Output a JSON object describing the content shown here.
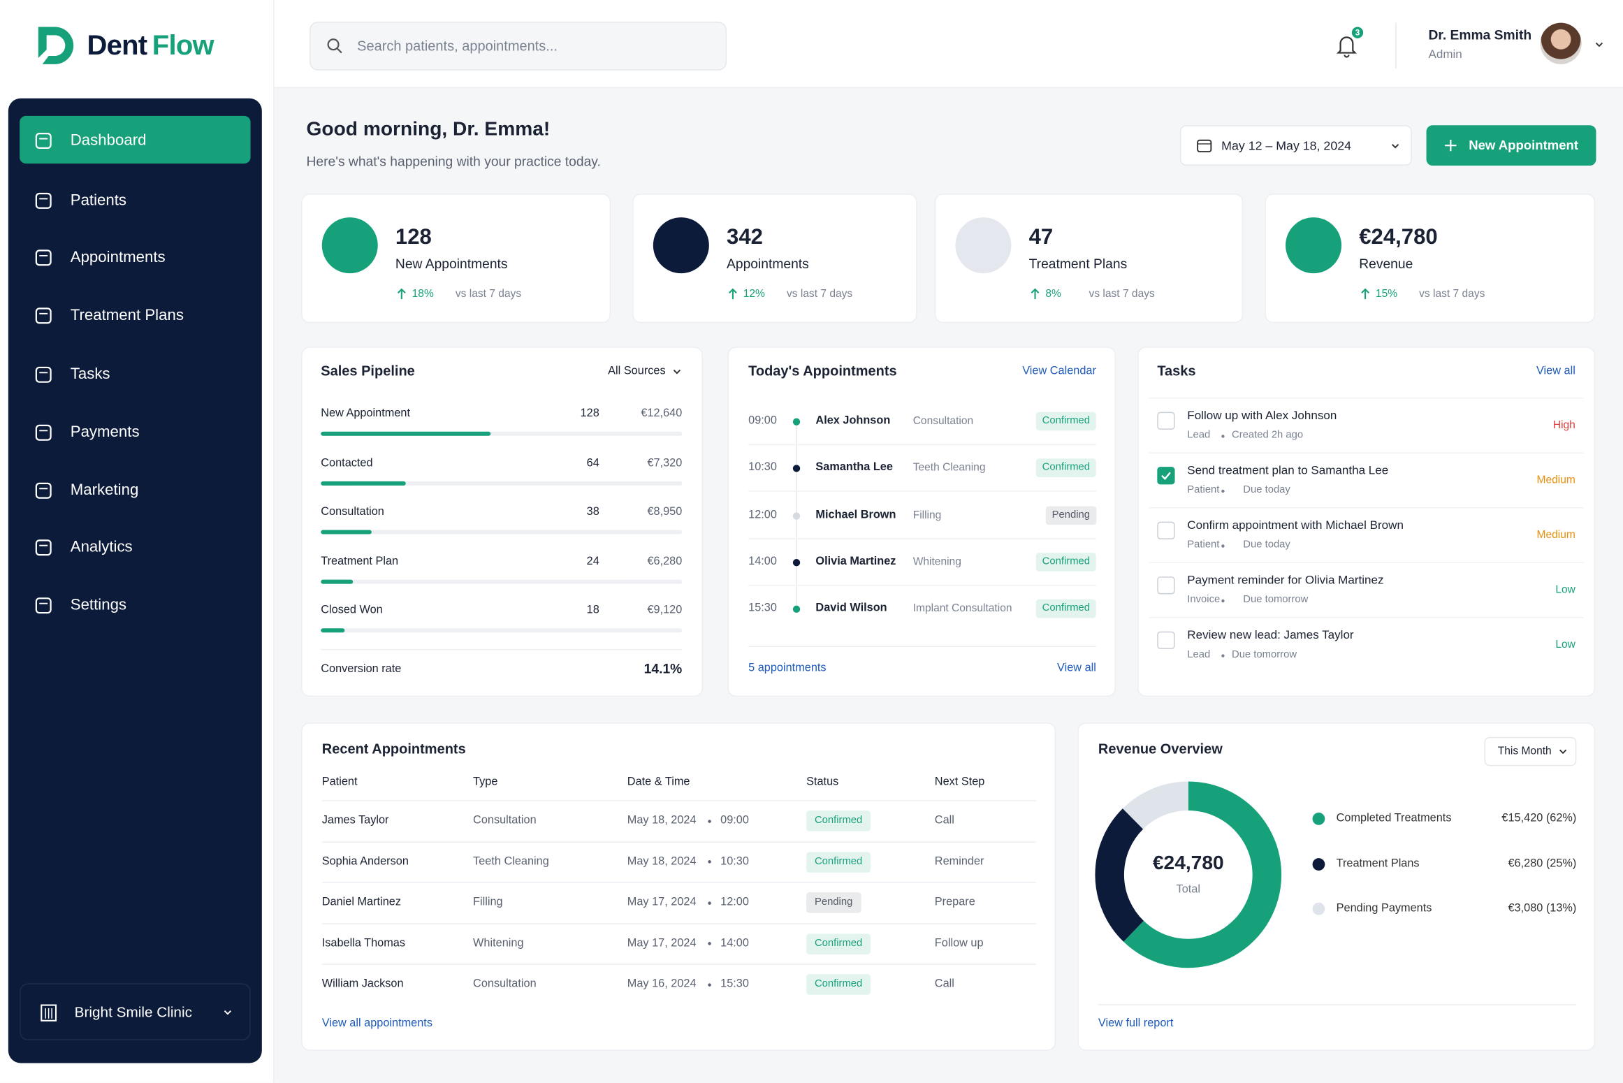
{
  "brand": {
    "part1": "Dent",
    "part2": "Flow"
  },
  "search_placeholder": "Search patients, appointments...",
  "notifications": "3",
  "user": {
    "name": "Dr. Emma Smith",
    "role": "Admin"
  },
  "nav": [
    "Dashboard",
    "Patients",
    "Appointments",
    "Treatment Plans",
    "Tasks",
    "Payments",
    "Marketing",
    "Analytics",
    "Settings"
  ],
  "clinic": "Bright Smile Clinic",
  "greeting": {
    "title": "Good morning, Dr. Emma!",
    "subtitle": "Here's what's happening with your practice today."
  },
  "date_range": "May 12 – May 18, 2024",
  "new_appointment_button": "New Appointment",
  "stats": [
    {
      "value": "128",
      "label": "New Appointments",
      "change": "18%",
      "period": "vs last 7 days",
      "icon_color": "#17a17a"
    },
    {
      "value": "342",
      "label": "Appointments",
      "change": "12%",
      "period": "vs last 7 days",
      "icon_color": "#0d1b3a"
    },
    {
      "value": "47",
      "label": "Treatment Plans",
      "change": "8%",
      "period": "vs last 7 days",
      "icon_color": "#e4e7ed"
    },
    {
      "value": "€24,780",
      "label": "Revenue",
      "change": "15%",
      "period": "vs last 7 days",
      "icon_color": "#17a17a"
    }
  ],
  "sales_pipeline": {
    "title": "Sales Pipeline",
    "filter": "All Sources",
    "stages": [
      {
        "name": "New Appointment",
        "count": 128,
        "amount": "€12,640"
      },
      {
        "name": "Contacted",
        "count": 64,
        "amount": "€7,320"
      },
      {
        "name": "Consultation",
        "count": 38,
        "amount": "€8,950"
      },
      {
        "name": "Treatment Plan",
        "count": 24,
        "amount": "€6,280"
      },
      {
        "name": "Closed Won",
        "count": 18,
        "amount": "€9,120"
      }
    ],
    "conversion_label": "Conversion rate",
    "conversion": "14.1%"
  },
  "todays_appointments": {
    "title": "Today's Appointments",
    "link": "View Calendar",
    "items": [
      {
        "time": "09:00",
        "name": "Alex Johnson",
        "type": "Consultation",
        "status": "Confirmed",
        "status_color": "#17a17a",
        "dot_color": "#17a17a"
      },
      {
        "time": "10:30",
        "name": "Samantha Lee",
        "type": "Teeth Cleaning",
        "status": "Confirmed",
        "status_color": "#17a17a",
        "dot_color": "#0d1b3a"
      },
      {
        "time": "12:00",
        "name": "Michael Brown",
        "type": "Filling",
        "status": "Pending",
        "status_color": "#555b66",
        "dot_color": "#d5d9e0"
      },
      {
        "time": "14:00",
        "name": "Olivia Martinez",
        "type": "Whitening",
        "status": "Confirmed",
        "status_color": "#17a17a",
        "dot_color": "#0d1b3a"
      },
      {
        "time": "15:30",
        "name": "David Wilson",
        "type": "Implant Consultation",
        "status": "Confirmed",
        "status_color": "#17a17a",
        "dot_color": "#17a17a"
      }
    ],
    "count": "5 appointments",
    "view_all": "View all"
  },
  "tasks": {
    "title": "Tasks",
    "link": "View all",
    "items": [
      {
        "title": "Follow up with Alex Johnson",
        "tag": "Lead",
        "meta": "Created 2h ago",
        "priority": "High",
        "priority_color": "#e03e3e",
        "done": false
      },
      {
        "title": "Send treatment plan to Samantha Lee",
        "tag": "Patient",
        "meta": "Due today",
        "priority": "Medium",
        "priority_color": "#e8900c",
        "done": true
      },
      {
        "title": "Confirm appointment with Michael Brown",
        "tag": "Patient",
        "meta": "Due today",
        "priority": "Medium",
        "priority_color": "#e8900c",
        "done": false
      },
      {
        "title": "Payment reminder for Olivia Martinez",
        "tag": "Invoice",
        "meta": "Due tomorrow",
        "priority": "Low",
        "priority_color": "#17a17a",
        "done": false
      },
      {
        "title": "Review new lead: James Taylor",
        "tag": "Lead",
        "meta": "Due tomorrow",
        "priority": "Low",
        "priority_color": "#17a17a",
        "done": false
      }
    ]
  },
  "recent_appointments": {
    "title": "Recent Appointments",
    "columns": [
      "Patient",
      "Type",
      "Date & Time",
      "Status",
      "Next Step"
    ],
    "rows": [
      {
        "patient": "James Taylor",
        "type": "Consultation",
        "date": "May 18, 2024",
        "time": "09:00",
        "status": "Confirmed",
        "status_color": "#17a17a",
        "next": "Call"
      },
      {
        "patient": "Sophia Anderson",
        "type": "Teeth Cleaning",
        "date": "May 18, 2024",
        "time": "10:30",
        "status": "Confirmed",
        "status_color": "#17a17a",
        "next": "Reminder"
      },
      {
        "patient": "Daniel Martinez",
        "type": "Filling",
        "date": "May 17, 2024",
        "time": "12:00",
        "status": "Pending",
        "status_color": "#555b66",
        "next": "Prepare"
      },
      {
        "patient": "Isabella Thomas",
        "type": "Whitening",
        "date": "May 17, 2024",
        "time": "14:00",
        "status": "Confirmed",
        "status_color": "#17a17a",
        "next": "Follow up"
      },
      {
        "patient": "William Jackson",
        "type": "Consultation",
        "date": "May 16, 2024",
        "time": "15:30",
        "status": "Confirmed",
        "status_color": "#17a17a",
        "next": "Call"
      }
    ],
    "link": "View all appointments"
  },
  "revenue_overview": {
    "title": "Revenue Overview",
    "period": "This Month",
    "total": "€24,780",
    "total_label": "Total",
    "segments": [
      {
        "name": "Completed Treatments",
        "value": 15420,
        "value_label": "€15,420 (62%)",
        "color": "#17a17a"
      },
      {
        "name": "Treatment Plans",
        "value": 6280,
        "value_label": "€6,280 (25%)",
        "color": "#0d1b3a"
      },
      {
        "name": "Pending Payments",
        "value": 3080,
        "value_label": "€3,080 (13%)",
        "color": "#dfe3ea"
      }
    ],
    "link": "View full report"
  }
}
